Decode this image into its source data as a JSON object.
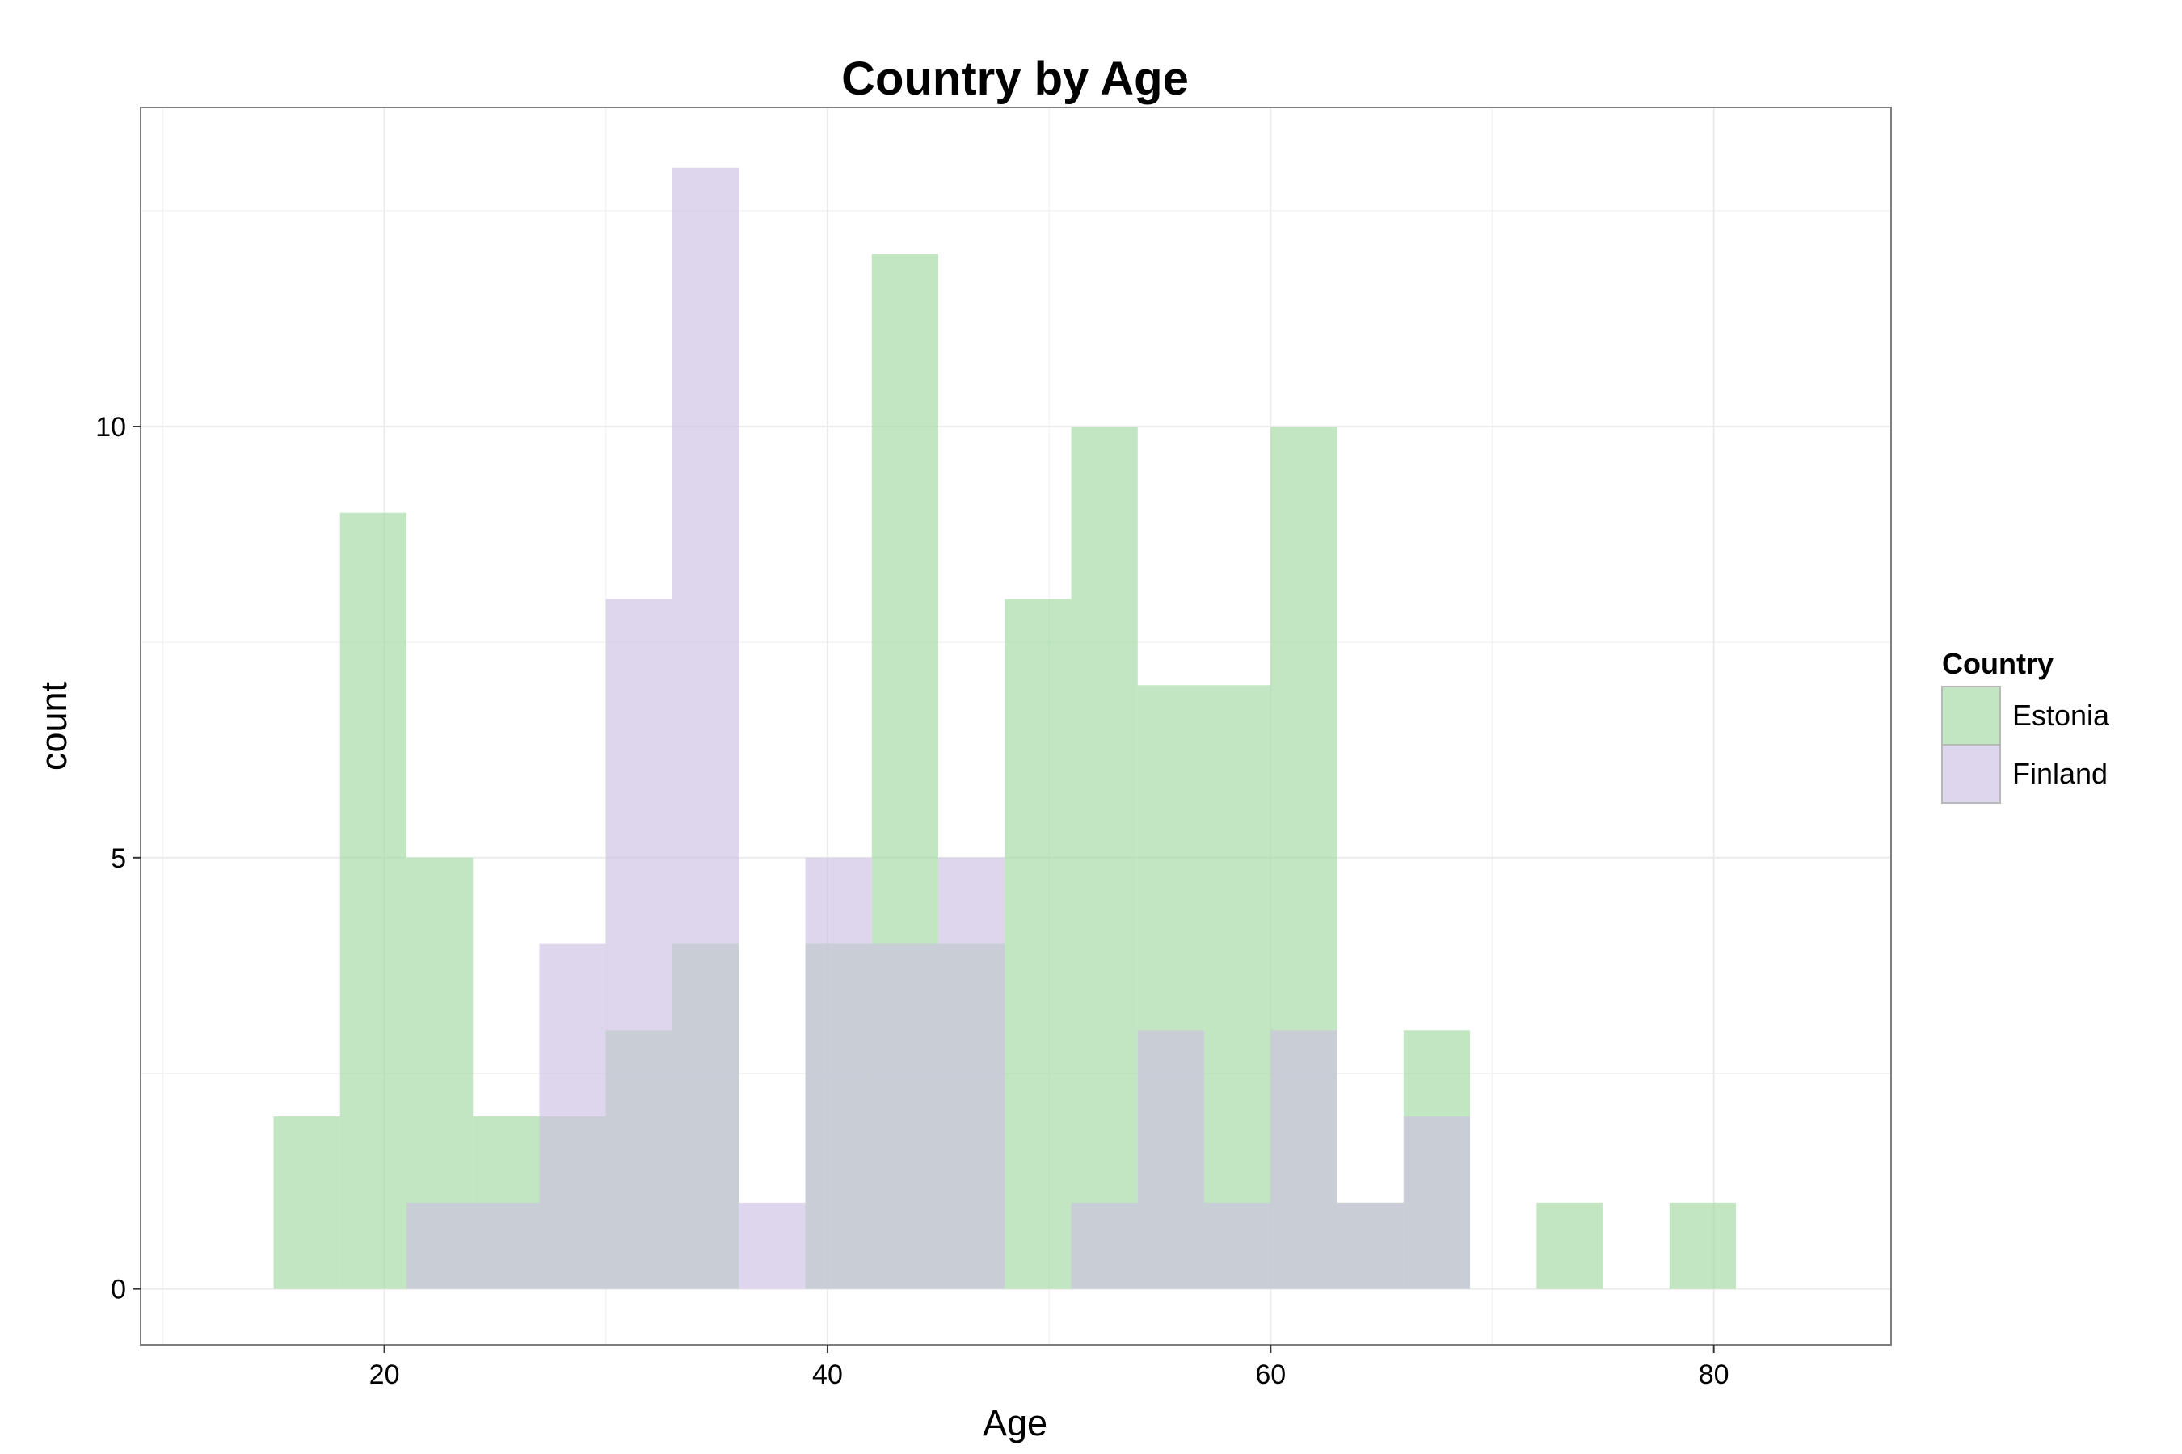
{
  "chart_data": {
    "type": "bar",
    "title": "Country by Age",
    "xlabel": "Age",
    "ylabel": "count",
    "xlim": [
      9,
      88
    ],
    "ylim": [
      -0.65,
      13.7
    ],
    "x_ticks": [
      20,
      40,
      60,
      80
    ],
    "y_ticks": [
      0,
      5,
      10
    ],
    "grid": true,
    "bin_width": 3,
    "legend": {
      "title": "Country",
      "position": "right"
    },
    "series": [
      {
        "name": "Estonia",
        "color": "#9fd8a0",
        "bins": [
          {
            "start": 15,
            "end": 18,
            "count": 2
          },
          {
            "start": 18,
            "end": 21,
            "count": 9
          },
          {
            "start": 21,
            "end": 24,
            "count": 5
          },
          {
            "start": 24,
            "end": 27,
            "count": 2
          },
          {
            "start": 27,
            "end": 30,
            "count": 2
          },
          {
            "start": 30,
            "end": 33,
            "count": 3
          },
          {
            "start": 33,
            "end": 36,
            "count": 4
          },
          {
            "start": 36,
            "end": 39,
            "count": 0
          },
          {
            "start": 39,
            "end": 42,
            "count": 4
          },
          {
            "start": 42,
            "end": 45,
            "count": 12
          },
          {
            "start": 45,
            "end": 48,
            "count": 4
          },
          {
            "start": 48,
            "end": 51,
            "count": 8
          },
          {
            "start": 51,
            "end": 54,
            "count": 10
          },
          {
            "start": 54,
            "end": 57,
            "count": 7
          },
          {
            "start": 57,
            "end": 60,
            "count": 7
          },
          {
            "start": 60,
            "end": 63,
            "count": 10
          },
          {
            "start": 63,
            "end": 66,
            "count": 1
          },
          {
            "start": 66,
            "end": 69,
            "count": 3
          },
          {
            "start": 69,
            "end": 72,
            "count": 0
          },
          {
            "start": 72,
            "end": 75,
            "count": 1
          },
          {
            "start": 75,
            "end": 78,
            "count": 0
          },
          {
            "start": 78,
            "end": 81,
            "count": 1
          }
        ]
      },
      {
        "name": "Finland",
        "color": "#cdc0e2",
        "bins": [
          {
            "start": 21,
            "end": 24,
            "count": 1
          },
          {
            "start": 24,
            "end": 27,
            "count": 1
          },
          {
            "start": 27,
            "end": 30,
            "count": 4
          },
          {
            "start": 30,
            "end": 33,
            "count": 8
          },
          {
            "start": 33,
            "end": 36,
            "count": 13
          },
          {
            "start": 36,
            "end": 39,
            "count": 1
          },
          {
            "start": 39,
            "end": 42,
            "count": 5
          },
          {
            "start": 42,
            "end": 45,
            "count": 4
          },
          {
            "start": 45,
            "end": 48,
            "count": 5
          },
          {
            "start": 48,
            "end": 51,
            "count": 0
          },
          {
            "start": 51,
            "end": 54,
            "count": 1
          },
          {
            "start": 54,
            "end": 57,
            "count": 3
          },
          {
            "start": 57,
            "end": 60,
            "count": 1
          },
          {
            "start": 60,
            "end": 63,
            "count": 3
          },
          {
            "start": 63,
            "end": 66,
            "count": 1
          },
          {
            "start": 66,
            "end": 69,
            "count": 2
          }
        ]
      }
    ]
  }
}
